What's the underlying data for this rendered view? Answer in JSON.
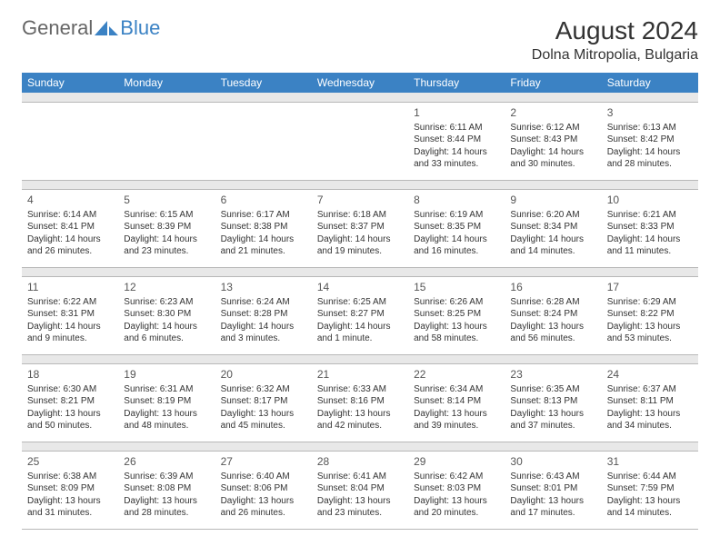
{
  "logo": {
    "text_general": "General",
    "text_blue": "Blue",
    "icon_color": "#3b82c4"
  },
  "header": {
    "month_title": "August 2024",
    "location": "Dolna Mitropolia, Bulgaria"
  },
  "colors": {
    "header_bg": "#3b82c4",
    "header_text": "#ffffff",
    "spacer_bg": "#e8e8e8",
    "border": "#b8b8b8",
    "body_text": "#333333"
  },
  "day_labels": [
    "Sunday",
    "Monday",
    "Tuesday",
    "Wednesday",
    "Thursday",
    "Friday",
    "Saturday"
  ],
  "weeks": [
    [
      null,
      null,
      null,
      null,
      {
        "num": "1",
        "sunrise": "Sunrise: 6:11 AM",
        "sunset": "Sunset: 8:44 PM",
        "daylight": "Daylight: 14 hours and 33 minutes."
      },
      {
        "num": "2",
        "sunrise": "Sunrise: 6:12 AM",
        "sunset": "Sunset: 8:43 PM",
        "daylight": "Daylight: 14 hours and 30 minutes."
      },
      {
        "num": "3",
        "sunrise": "Sunrise: 6:13 AM",
        "sunset": "Sunset: 8:42 PM",
        "daylight": "Daylight: 14 hours and 28 minutes."
      }
    ],
    [
      {
        "num": "4",
        "sunrise": "Sunrise: 6:14 AM",
        "sunset": "Sunset: 8:41 PM",
        "daylight": "Daylight: 14 hours and 26 minutes."
      },
      {
        "num": "5",
        "sunrise": "Sunrise: 6:15 AM",
        "sunset": "Sunset: 8:39 PM",
        "daylight": "Daylight: 14 hours and 23 minutes."
      },
      {
        "num": "6",
        "sunrise": "Sunrise: 6:17 AM",
        "sunset": "Sunset: 8:38 PM",
        "daylight": "Daylight: 14 hours and 21 minutes."
      },
      {
        "num": "7",
        "sunrise": "Sunrise: 6:18 AM",
        "sunset": "Sunset: 8:37 PM",
        "daylight": "Daylight: 14 hours and 19 minutes."
      },
      {
        "num": "8",
        "sunrise": "Sunrise: 6:19 AM",
        "sunset": "Sunset: 8:35 PM",
        "daylight": "Daylight: 14 hours and 16 minutes."
      },
      {
        "num": "9",
        "sunrise": "Sunrise: 6:20 AM",
        "sunset": "Sunset: 8:34 PM",
        "daylight": "Daylight: 14 hours and 14 minutes."
      },
      {
        "num": "10",
        "sunrise": "Sunrise: 6:21 AM",
        "sunset": "Sunset: 8:33 PM",
        "daylight": "Daylight: 14 hours and 11 minutes."
      }
    ],
    [
      {
        "num": "11",
        "sunrise": "Sunrise: 6:22 AM",
        "sunset": "Sunset: 8:31 PM",
        "daylight": "Daylight: 14 hours and 9 minutes."
      },
      {
        "num": "12",
        "sunrise": "Sunrise: 6:23 AM",
        "sunset": "Sunset: 8:30 PM",
        "daylight": "Daylight: 14 hours and 6 minutes."
      },
      {
        "num": "13",
        "sunrise": "Sunrise: 6:24 AM",
        "sunset": "Sunset: 8:28 PM",
        "daylight": "Daylight: 14 hours and 3 minutes."
      },
      {
        "num": "14",
        "sunrise": "Sunrise: 6:25 AM",
        "sunset": "Sunset: 8:27 PM",
        "daylight": "Daylight: 14 hours and 1 minute."
      },
      {
        "num": "15",
        "sunrise": "Sunrise: 6:26 AM",
        "sunset": "Sunset: 8:25 PM",
        "daylight": "Daylight: 13 hours and 58 minutes."
      },
      {
        "num": "16",
        "sunrise": "Sunrise: 6:28 AM",
        "sunset": "Sunset: 8:24 PM",
        "daylight": "Daylight: 13 hours and 56 minutes."
      },
      {
        "num": "17",
        "sunrise": "Sunrise: 6:29 AM",
        "sunset": "Sunset: 8:22 PM",
        "daylight": "Daylight: 13 hours and 53 minutes."
      }
    ],
    [
      {
        "num": "18",
        "sunrise": "Sunrise: 6:30 AM",
        "sunset": "Sunset: 8:21 PM",
        "daylight": "Daylight: 13 hours and 50 minutes."
      },
      {
        "num": "19",
        "sunrise": "Sunrise: 6:31 AM",
        "sunset": "Sunset: 8:19 PM",
        "daylight": "Daylight: 13 hours and 48 minutes."
      },
      {
        "num": "20",
        "sunrise": "Sunrise: 6:32 AM",
        "sunset": "Sunset: 8:17 PM",
        "daylight": "Daylight: 13 hours and 45 minutes."
      },
      {
        "num": "21",
        "sunrise": "Sunrise: 6:33 AM",
        "sunset": "Sunset: 8:16 PM",
        "daylight": "Daylight: 13 hours and 42 minutes."
      },
      {
        "num": "22",
        "sunrise": "Sunrise: 6:34 AM",
        "sunset": "Sunset: 8:14 PM",
        "daylight": "Daylight: 13 hours and 39 minutes."
      },
      {
        "num": "23",
        "sunrise": "Sunrise: 6:35 AM",
        "sunset": "Sunset: 8:13 PM",
        "daylight": "Daylight: 13 hours and 37 minutes."
      },
      {
        "num": "24",
        "sunrise": "Sunrise: 6:37 AM",
        "sunset": "Sunset: 8:11 PM",
        "daylight": "Daylight: 13 hours and 34 minutes."
      }
    ],
    [
      {
        "num": "25",
        "sunrise": "Sunrise: 6:38 AM",
        "sunset": "Sunset: 8:09 PM",
        "daylight": "Daylight: 13 hours and 31 minutes."
      },
      {
        "num": "26",
        "sunrise": "Sunrise: 6:39 AM",
        "sunset": "Sunset: 8:08 PM",
        "daylight": "Daylight: 13 hours and 28 minutes."
      },
      {
        "num": "27",
        "sunrise": "Sunrise: 6:40 AM",
        "sunset": "Sunset: 8:06 PM",
        "daylight": "Daylight: 13 hours and 26 minutes."
      },
      {
        "num": "28",
        "sunrise": "Sunrise: 6:41 AM",
        "sunset": "Sunset: 8:04 PM",
        "daylight": "Daylight: 13 hours and 23 minutes."
      },
      {
        "num": "29",
        "sunrise": "Sunrise: 6:42 AM",
        "sunset": "Sunset: 8:03 PM",
        "daylight": "Daylight: 13 hours and 20 minutes."
      },
      {
        "num": "30",
        "sunrise": "Sunrise: 6:43 AM",
        "sunset": "Sunset: 8:01 PM",
        "daylight": "Daylight: 13 hours and 17 minutes."
      },
      {
        "num": "31",
        "sunrise": "Sunrise: 6:44 AM",
        "sunset": "Sunset: 7:59 PM",
        "daylight": "Daylight: 13 hours and 14 minutes."
      }
    ]
  ]
}
